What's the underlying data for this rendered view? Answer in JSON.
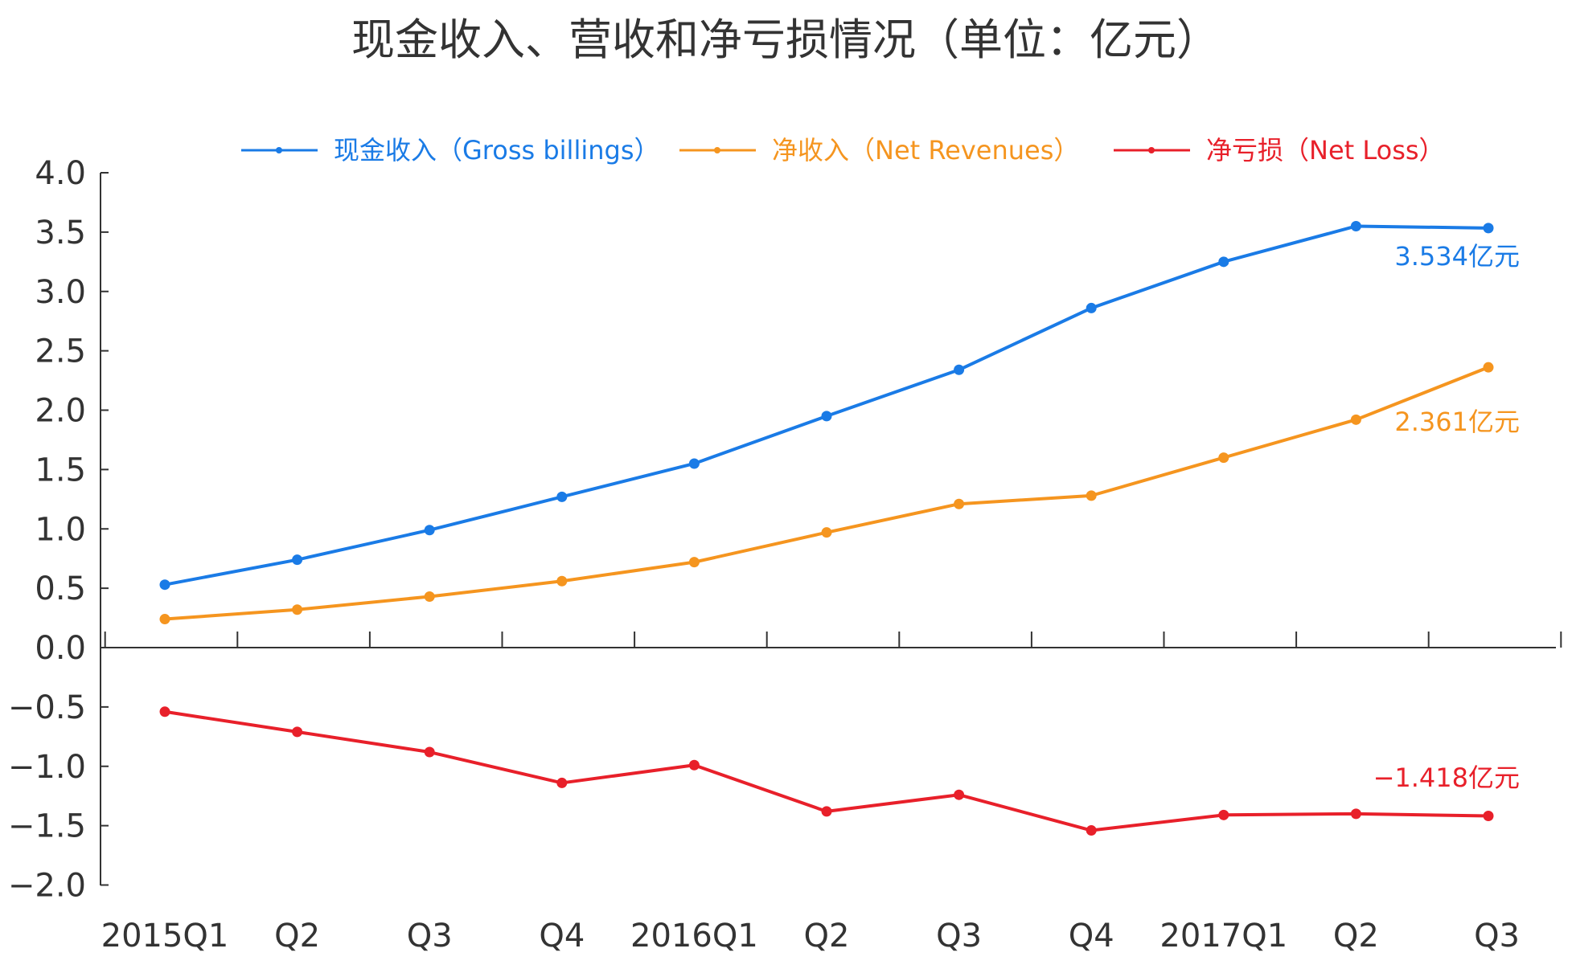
{
  "chart_data": {
    "type": "line",
    "title": "现金收入、营收和净亏损情况（单位：亿元）",
    "categories": [
      "2015Q1",
      "Q2",
      "Q3",
      "Q4",
      "2016Q1",
      "Q2",
      "Q3",
      "Q4",
      "2017Q1",
      "Q2",
      "Q3"
    ],
    "y_ticks": [
      "4.0",
      "3.5",
      "3.0",
      "2.5",
      "2.0",
      "1.5",
      "1.0",
      "0.5",
      "0.0",
      "−0.5",
      "−1.0",
      "−1.5",
      "−2.0"
    ],
    "ylim": [
      -2.0,
      4.0
    ],
    "grid": false,
    "legend_position": "top",
    "series": [
      {
        "name": "现金收入（Gross billings）",
        "color": "#1a7be6",
        "values": [
          0.53,
          0.74,
          0.99,
          1.27,
          1.55,
          1.95,
          2.34,
          2.86,
          3.25,
          3.55,
          3.534
        ],
        "end_label": "3.534亿元"
      },
      {
        "name": "净收入（Net Revenues）",
        "color": "#f5951f",
        "values": [
          0.24,
          0.32,
          0.43,
          0.56,
          0.72,
          0.97,
          1.21,
          1.28,
          1.6,
          1.92,
          2.361
        ],
        "end_label": "2.361亿元"
      },
      {
        "name": "净亏损（Net Loss）",
        "color": "#e8202a",
        "values": [
          -0.54,
          -0.71,
          -0.88,
          -1.14,
          -0.99,
          -1.38,
          -1.24,
          -1.54,
          -1.41,
          -1.4,
          -1.418
        ],
        "end_label": "−1.418亿元"
      }
    ]
  }
}
